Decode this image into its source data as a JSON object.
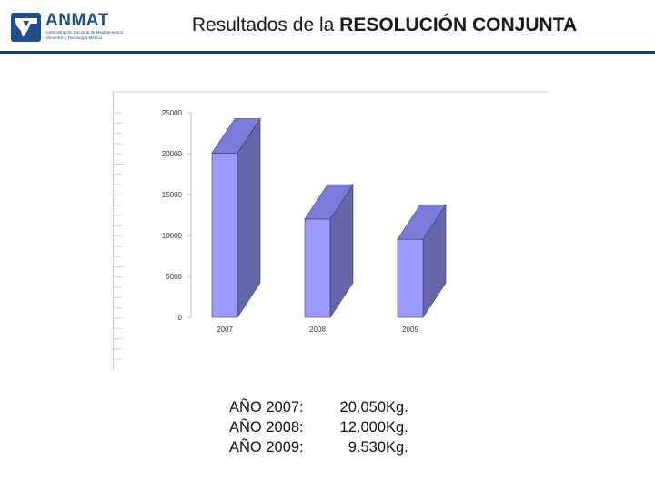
{
  "header": {
    "logo_name": "ANMAT",
    "logo_tagline": "Administración Nacional de Medicamentos, Alimentos y Tecnología Médica",
    "title_prefix": "Resultados de la ",
    "title_bold": "RESOLUCIÓN CONJUNTA"
  },
  "colors": {
    "brand": "#1f4e8c",
    "bar_front": "#9999ff",
    "bar_side": "#6666aa",
    "bar_top": "#7b7bd9",
    "bar_edge": "#3a3a66"
  },
  "chart_data": {
    "type": "bar",
    "categories": [
      "2007",
      "2008",
      "2009"
    ],
    "values": [
      20050,
      12000,
      9530
    ],
    "ylim": [
      0,
      25000
    ],
    "yticks": [
      "0",
      "5000",
      "10000",
      "15000",
      "20000",
      "25000"
    ],
    "grid": false,
    "title": "",
    "xlabel": "",
    "ylabel": ""
  },
  "summary": [
    {
      "year": "AÑO 2007:",
      "value": "20.050",
      "unit": "Kg."
    },
    {
      "year": "AÑO 2008:",
      "value": "12.000",
      "unit": "Kg."
    },
    {
      "year": "AÑO 2009:",
      "value": "9.530",
      "unit": "Kg."
    }
  ]
}
